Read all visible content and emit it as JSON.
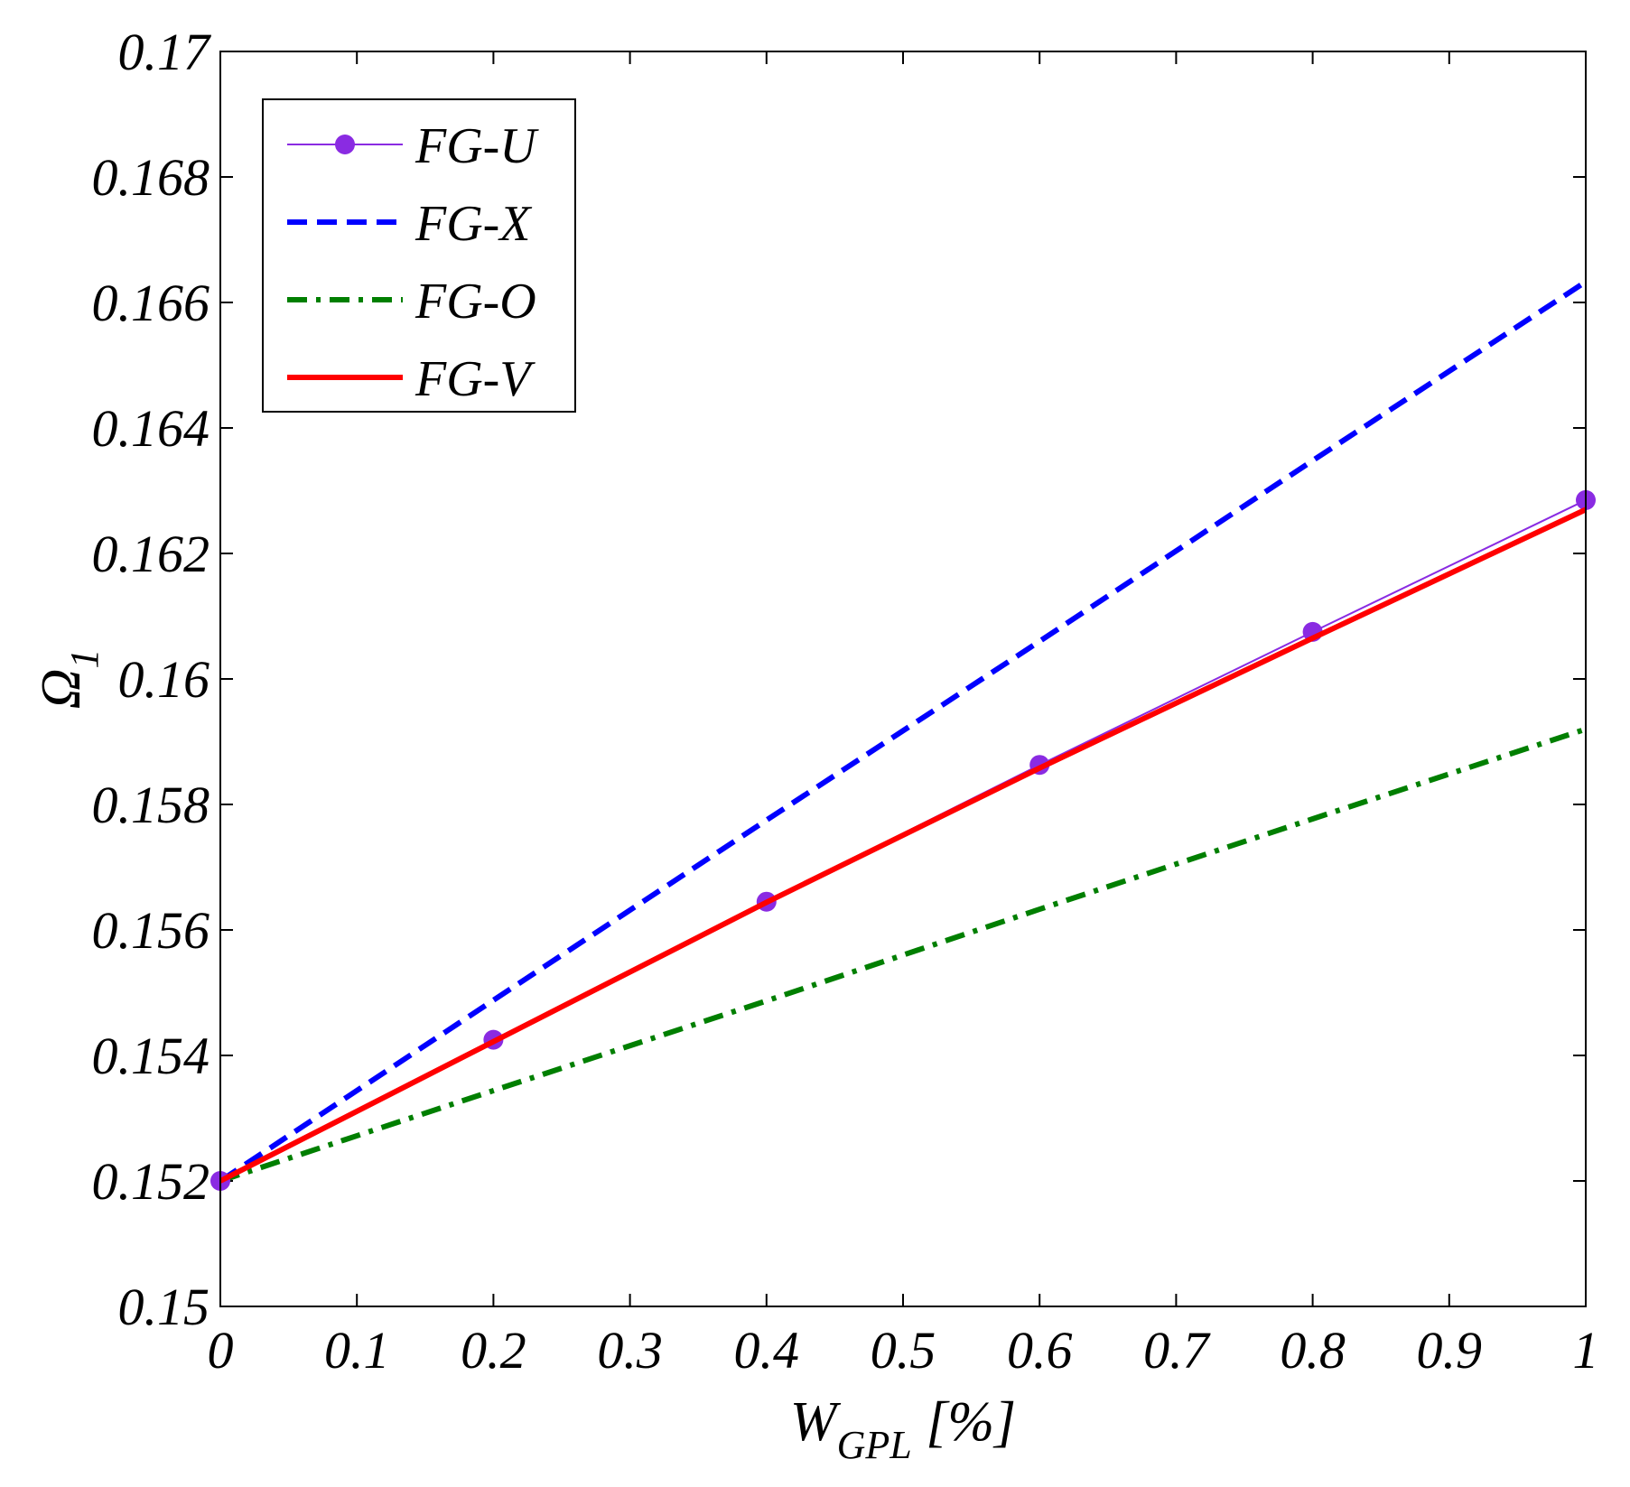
{
  "chart_data": {
    "type": "line",
    "title": "",
    "xlabel": {
      "main": "W",
      "sub": "GPL",
      "suffix": " [%]"
    },
    "ylabel": {
      "main": "Ω",
      "sub": "1"
    },
    "xlim": [
      0,
      1
    ],
    "ylim": [
      0.15,
      0.17
    ],
    "x_ticks": [
      0,
      0.1,
      0.2,
      0.3,
      0.4,
      0.5,
      0.6,
      0.7,
      0.8,
      0.9,
      1
    ],
    "x_tick_labels": [
      "0",
      "0.1",
      "0.2",
      "0.3",
      "0.4",
      "0.5",
      "0.6",
      "0.7",
      "0.8",
      "0.9",
      "1"
    ],
    "y_ticks": [
      0.15,
      0.152,
      0.154,
      0.156,
      0.158,
      0.16,
      0.162,
      0.164,
      0.166,
      0.168,
      0.17
    ],
    "y_tick_labels": [
      "0.15",
      "0.152",
      "0.154",
      "0.156",
      "0.158",
      "0.16",
      "0.162",
      "0.164",
      "0.166",
      "0.168",
      "0.17"
    ],
    "grid": false,
    "legend_position": "top-left",
    "series": [
      {
        "name": "FG-U",
        "color": "#8A2BE2",
        "style": "solid-thin-markers",
        "x": [
          0,
          0.2,
          0.4,
          0.6,
          0.8,
          1
        ],
        "y": [
          0.152,
          0.15425,
          0.15645,
          0.15863,
          0.16075,
          0.16285
        ]
      },
      {
        "name": "FG-X",
        "color": "#0000FF",
        "style": "dashed",
        "x": [
          0,
          0.2,
          0.4,
          0.6,
          0.8,
          1
        ],
        "y": [
          0.152,
          0.15488,
          0.15775,
          0.1606,
          0.16348,
          0.16633
        ]
      },
      {
        "name": "FG-O",
        "color": "#007F00",
        "style": "dashdot",
        "x": [
          0,
          0.2,
          0.4,
          0.6,
          0.8,
          1
        ],
        "y": [
          0.152,
          0.15344,
          0.15487,
          0.15633,
          0.15777,
          0.1592
        ]
      },
      {
        "name": "FG-V",
        "color": "#FF0000",
        "style": "solid-thick",
        "x": [
          0,
          0.2,
          0.4,
          0.6,
          0.8,
          1
        ],
        "y": [
          0.152,
          0.15422,
          0.15644,
          0.15858,
          0.16065,
          0.1627
        ]
      }
    ]
  }
}
